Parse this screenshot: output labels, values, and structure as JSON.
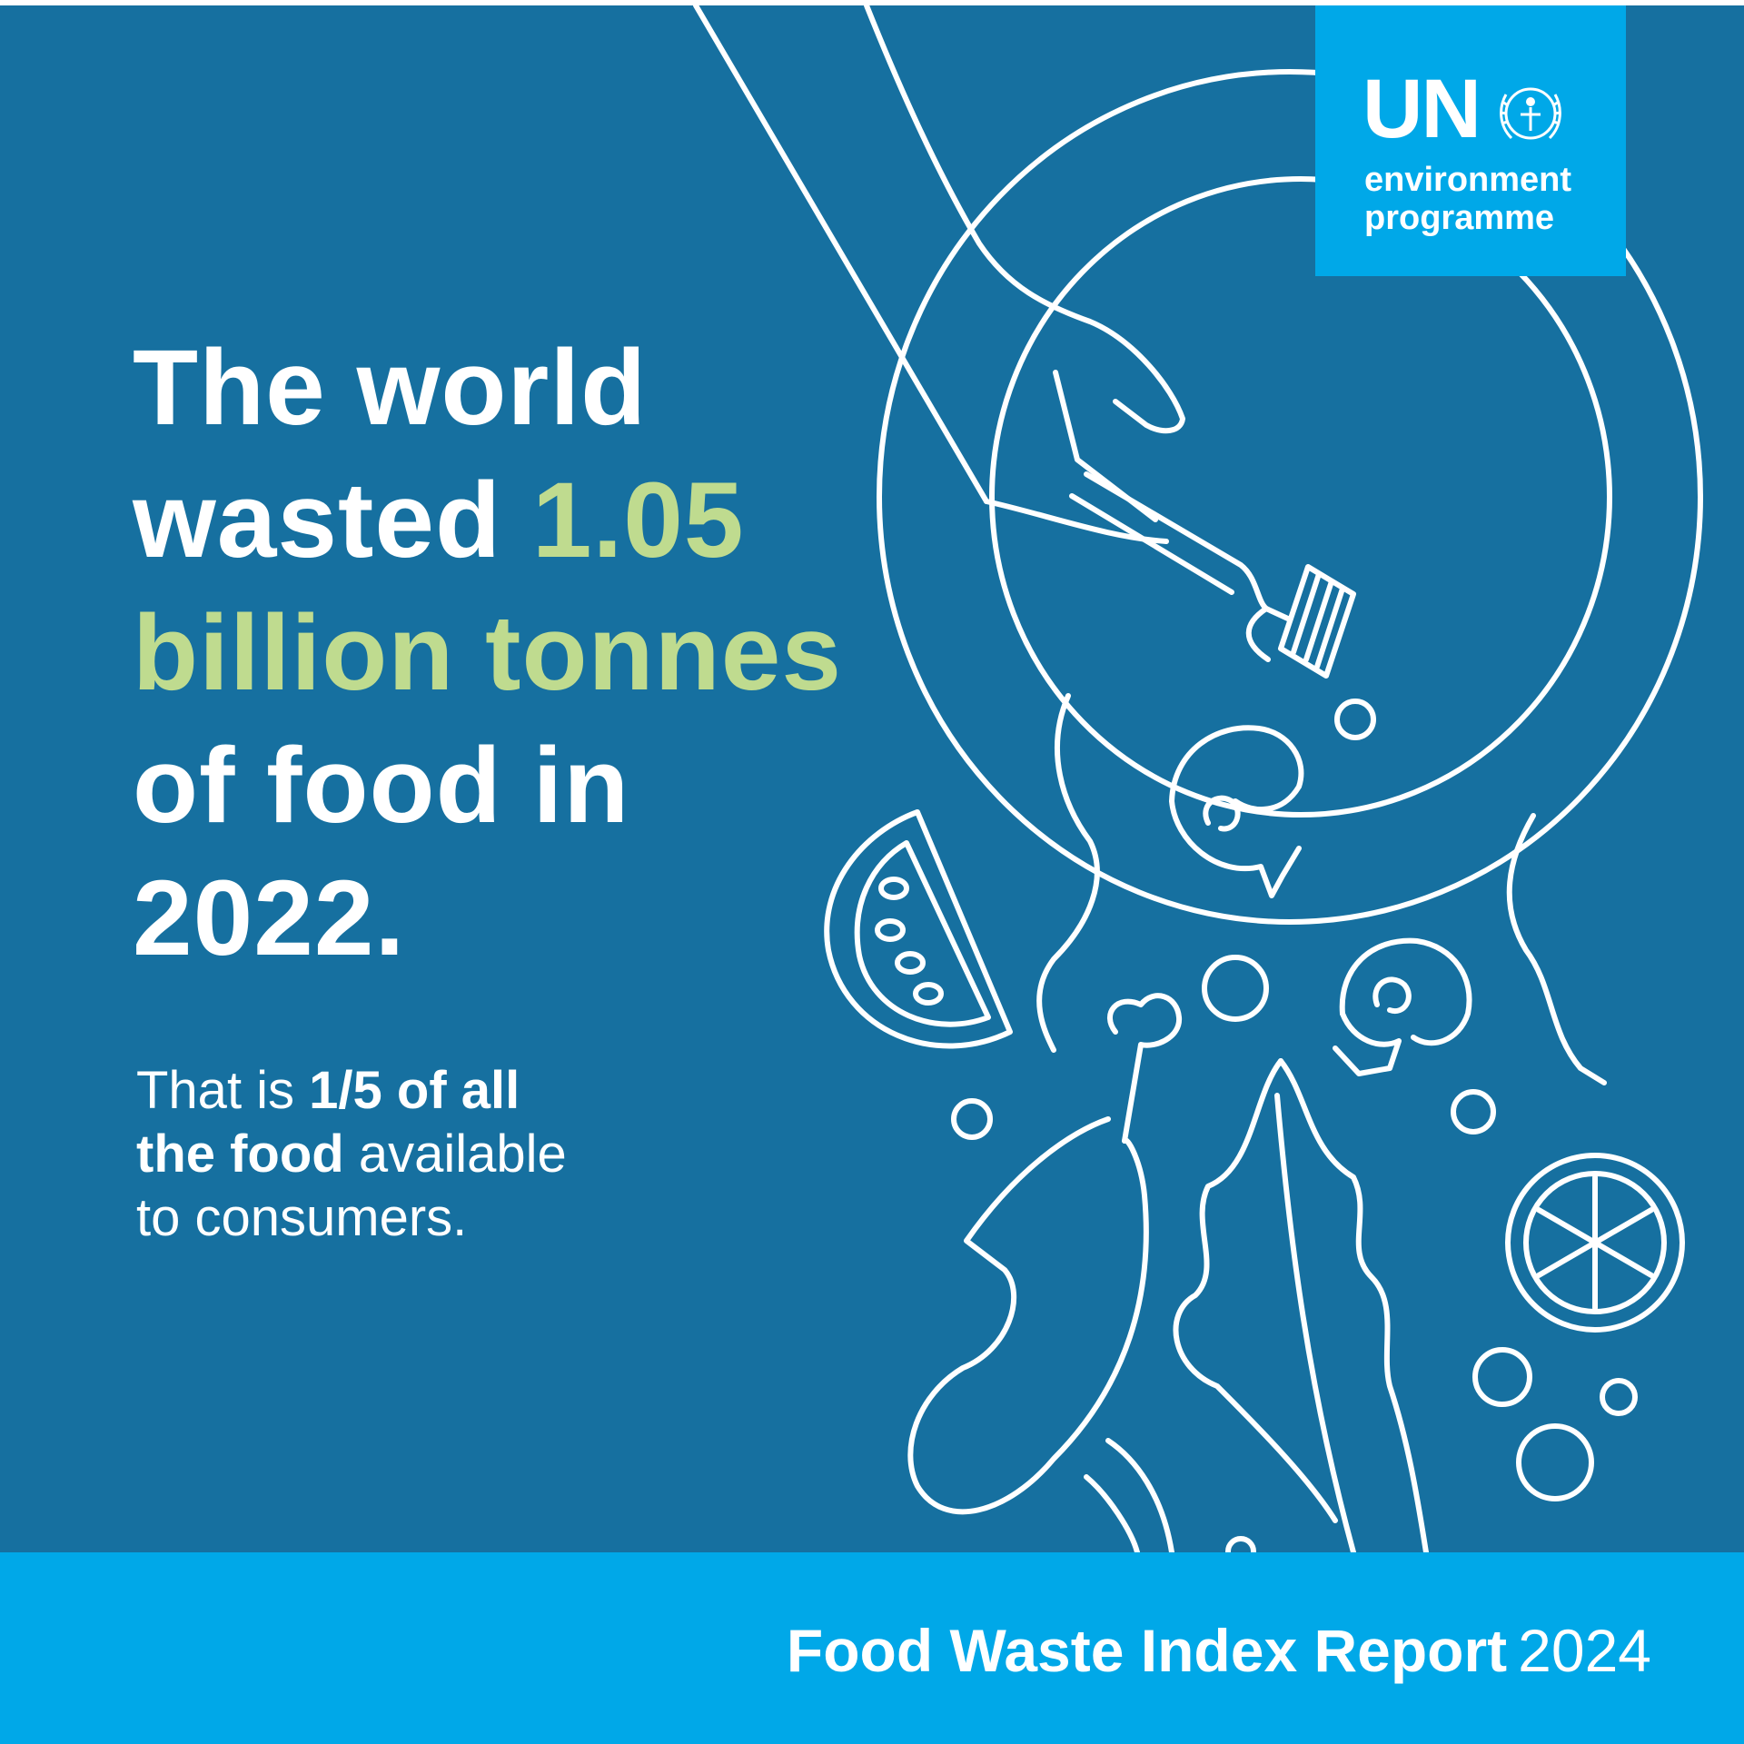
{
  "headline": {
    "line1": "The world",
    "line2_prefix": "wasted ",
    "line2_highlight": "1.05",
    "line3_highlight": "billion tonnes",
    "line4": "of food in",
    "line5": "2022."
  },
  "subtext": {
    "part1": "That is ",
    "part2_bold": "1/5 of all",
    "part3_bold": "the food",
    "part4": " available",
    "part5": "to consumers."
  },
  "logo": {
    "un": "UN",
    "line1": "environment",
    "line2": "programme"
  },
  "footer": {
    "title": "Food Waste Index Report",
    "year": "2024"
  },
  "colors": {
    "panel_background": "#1670a0",
    "accent_light_blue": "#00a8e8",
    "highlight_green": "#bfdb8f",
    "text_white": "#ffffff"
  },
  "icons": {
    "illustration": "plate-with-falling-food-line-art",
    "logo_emblem": "un-wreath-emblem"
  }
}
